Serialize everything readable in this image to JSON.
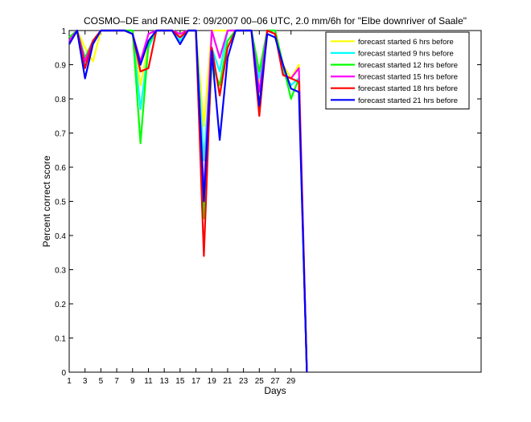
{
  "chart_data": {
    "type": "line",
    "title": "COSMO–DE and RANIE 2: 09/2007 00–06 UTC, 2.0 mm/6h for \"Elbe downriver of Saale\"",
    "xlabel": "Days",
    "ylabel": "Percent correct score",
    "xlim": [
      1,
      53
    ],
    "ylim": [
      0,
      1
    ],
    "xticks": [
      1,
      3,
      5,
      7,
      9,
      11,
      13,
      15,
      17,
      19,
      21,
      23,
      25,
      27,
      29
    ],
    "yticks": [
      0,
      0.1,
      0.2,
      0.3,
      0.4,
      0.5,
      0.6,
      0.7,
      0.8,
      0.9,
      1
    ],
    "grid": false,
    "legend_position": "top-right",
    "x": [
      1,
      2,
      3,
      4,
      5,
      6,
      7,
      8,
      9,
      10,
      11,
      12,
      13,
      14,
      15,
      16,
      17,
      18,
      19,
      20,
      21,
      22,
      23,
      24,
      25,
      26,
      27,
      28,
      29,
      30,
      31
    ],
    "series": [
      {
        "name": "forecast started 6 hrs before",
        "color": "#ffff00",
        "values": [
          0.96,
          1.0,
          0.95,
          0.91,
          1.0,
          1.0,
          1.0,
          1.0,
          1.0,
          0.84,
          0.96,
          1.0,
          1.0,
          1.0,
          0.99,
          1.0,
          1.0,
          0.72,
          1.0,
          1.0,
          1.0,
          1.0,
          1.0,
          1.0,
          0.85,
          1.0,
          1.0,
          0.9,
          0.86,
          0.9,
          0.0
        ]
      },
      {
        "name": "forecast started 9 hrs before",
        "color": "#00ffff",
        "values": [
          0.97,
          1.0,
          0.9,
          0.97,
          1.0,
          1.0,
          1.0,
          1.0,
          1.0,
          0.77,
          0.95,
          1.0,
          1.0,
          1.0,
          0.97,
          1.0,
          1.0,
          0.62,
          0.95,
          0.88,
          1.0,
          1.0,
          1.0,
          1.0,
          0.86,
          1.0,
          1.0,
          0.88,
          0.84,
          0.86,
          0.0
        ]
      },
      {
        "name": "forecast started 12 hrs before",
        "color": "#00ff00",
        "values": [
          0.98,
          1.0,
          0.92,
          0.97,
          1.0,
          1.0,
          1.0,
          1.0,
          1.0,
          0.67,
          0.96,
          1.0,
          1.0,
          1.0,
          0.98,
          1.0,
          1.0,
          0.45,
          0.9,
          0.84,
          0.97,
          1.0,
          1.0,
          1.0,
          0.88,
          1.0,
          1.0,
          0.9,
          0.8,
          0.86,
          0.0
        ]
      },
      {
        "name": "forecast started 15 hrs before",
        "color": "#ff00ff",
        "values": [
          0.97,
          1.0,
          0.91,
          0.97,
          1.0,
          1.0,
          1.0,
          1.0,
          0.99,
          0.91,
          0.99,
          1.0,
          1.0,
          1.0,
          0.99,
          1.0,
          1.0,
          0.52,
          1.0,
          0.92,
          1.0,
          1.0,
          1.0,
          1.0,
          0.82,
          1.0,
          0.99,
          0.87,
          0.86,
          0.89,
          0.0
        ]
      },
      {
        "name": "forecast started 18 hrs before",
        "color": "#ff0000",
        "values": [
          0.96,
          1.0,
          0.89,
          0.97,
          1.0,
          1.0,
          1.0,
          1.0,
          0.99,
          0.88,
          0.89,
          1.0,
          1.0,
          1.0,
          0.98,
          1.0,
          1.0,
          0.34,
          0.95,
          0.81,
          0.95,
          1.0,
          1.0,
          1.0,
          0.75,
          1.0,
          0.99,
          0.87,
          0.86,
          0.85,
          0.0
        ]
      },
      {
        "name": "forecast started 21 hrs before",
        "color": "#0000ff",
        "values": [
          0.96,
          1.0,
          0.86,
          0.96,
          1.0,
          1.0,
          1.0,
          1.0,
          0.99,
          0.9,
          0.97,
          1.0,
          1.0,
          1.0,
          0.96,
          1.0,
          1.0,
          0.5,
          0.94,
          0.68,
          0.92,
          1.0,
          1.0,
          1.0,
          0.78,
          0.99,
          0.98,
          0.9,
          0.83,
          0.82,
          0.0
        ]
      }
    ]
  }
}
